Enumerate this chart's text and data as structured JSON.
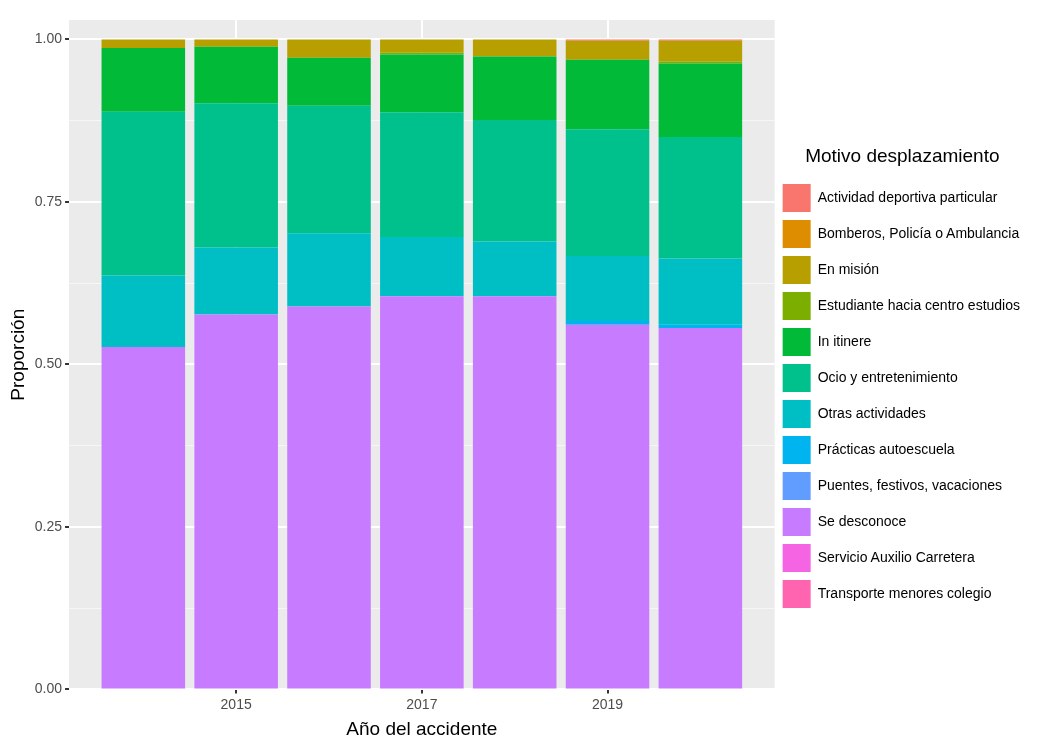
{
  "chart_data": {
    "type": "bar",
    "stacked": true,
    "xlabel": "Año del accidente",
    "ylabel": "Proporción",
    "legend_title": "Motivo desplazamiento",
    "legend": "right",
    "grid": true,
    "x": [
      2014,
      2015,
      2016,
      2017,
      2018,
      2019,
      2020
    ],
    "xlim": [
      2013.2,
      2020.8
    ],
    "xticks": [
      2015,
      2017,
      2019
    ],
    "ylim": [
      0,
      1.03
    ],
    "yticks": [
      {
        "value": 0,
        "label": "0.00"
      },
      {
        "value": 0.125,
        "label": null
      },
      {
        "value": 0.25,
        "label": "0.25"
      },
      {
        "value": 0.375,
        "label": null
      },
      {
        "value": 0.5,
        "label": "0.50"
      },
      {
        "value": 0.625,
        "label": null
      },
      {
        "value": 0.75,
        "label": "0.75"
      },
      {
        "value": 0.875,
        "label": null
      },
      {
        "value": 1,
        "label": "1.00"
      }
    ],
    "series": [
      {
        "name": "Transporte menores colegio",
        "color": "#ff64b0",
        "values": [
          0,
          0,
          0,
          0,
          0,
          0,
          0
        ]
      },
      {
        "name": "Servicio Auxilio Carretera",
        "color": "#f564e3",
        "values": [
          0,
          0,
          0,
          0,
          0,
          0,
          0
        ]
      },
      {
        "name": "Se desconoce",
        "color": "#c77cff",
        "values": [
          0.527,
          0.577,
          0.589,
          0.605,
          0.605,
          0.561,
          0.556
        ]
      },
      {
        "name": "Puentes, festivos, vacaciones",
        "color": "#619cff",
        "values": [
          0,
          0,
          0,
          0,
          0,
          0,
          0
        ]
      },
      {
        "name": "Prácticas autoescuela",
        "color": "#00b4f0",
        "values": [
          0,
          0,
          0,
          0,
          0,
          0.006,
          0.005
        ]
      },
      {
        "name": "Otras actividades",
        "color": "#00bfc4",
        "values": [
          0.11,
          0.103,
          0.113,
          0.091,
          0.084,
          0.1,
          0.102
        ]
      },
      {
        "name": "Ocio y entretenimiento",
        "color": "#00c08b",
        "values": [
          0.252,
          0.222,
          0.196,
          0.192,
          0.187,
          0.195,
          0.187
        ]
      },
      {
        "name": "In itinere",
        "color": "#00ba38",
        "values": [
          0.098,
          0.087,
          0.074,
          0.089,
          0.098,
          0.107,
          0.113
        ]
      },
      {
        "name": "Estudiante hacia centro estudios",
        "color": "#7cae00",
        "values": [
          0,
          0,
          0,
          0.003,
          0,
          0,
          0.003
        ]
      },
      {
        "name": "En misión",
        "color": "#b79f00",
        "values": [
          0.013,
          0.011,
          0.028,
          0.02,
          0.026,
          0.029,
          0.032
        ]
      },
      {
        "name": "Bomberos, Policía o Ambulancia",
        "color": "#de8c00",
        "values": [
          0,
          0,
          0,
          0,
          0,
          0,
          0
        ]
      },
      {
        "name": "Actividad deportiva particular",
        "color": "#f8766d",
        "values": [
          0,
          0,
          0,
          0,
          0,
          0.002,
          0.002
        ]
      }
    ]
  }
}
